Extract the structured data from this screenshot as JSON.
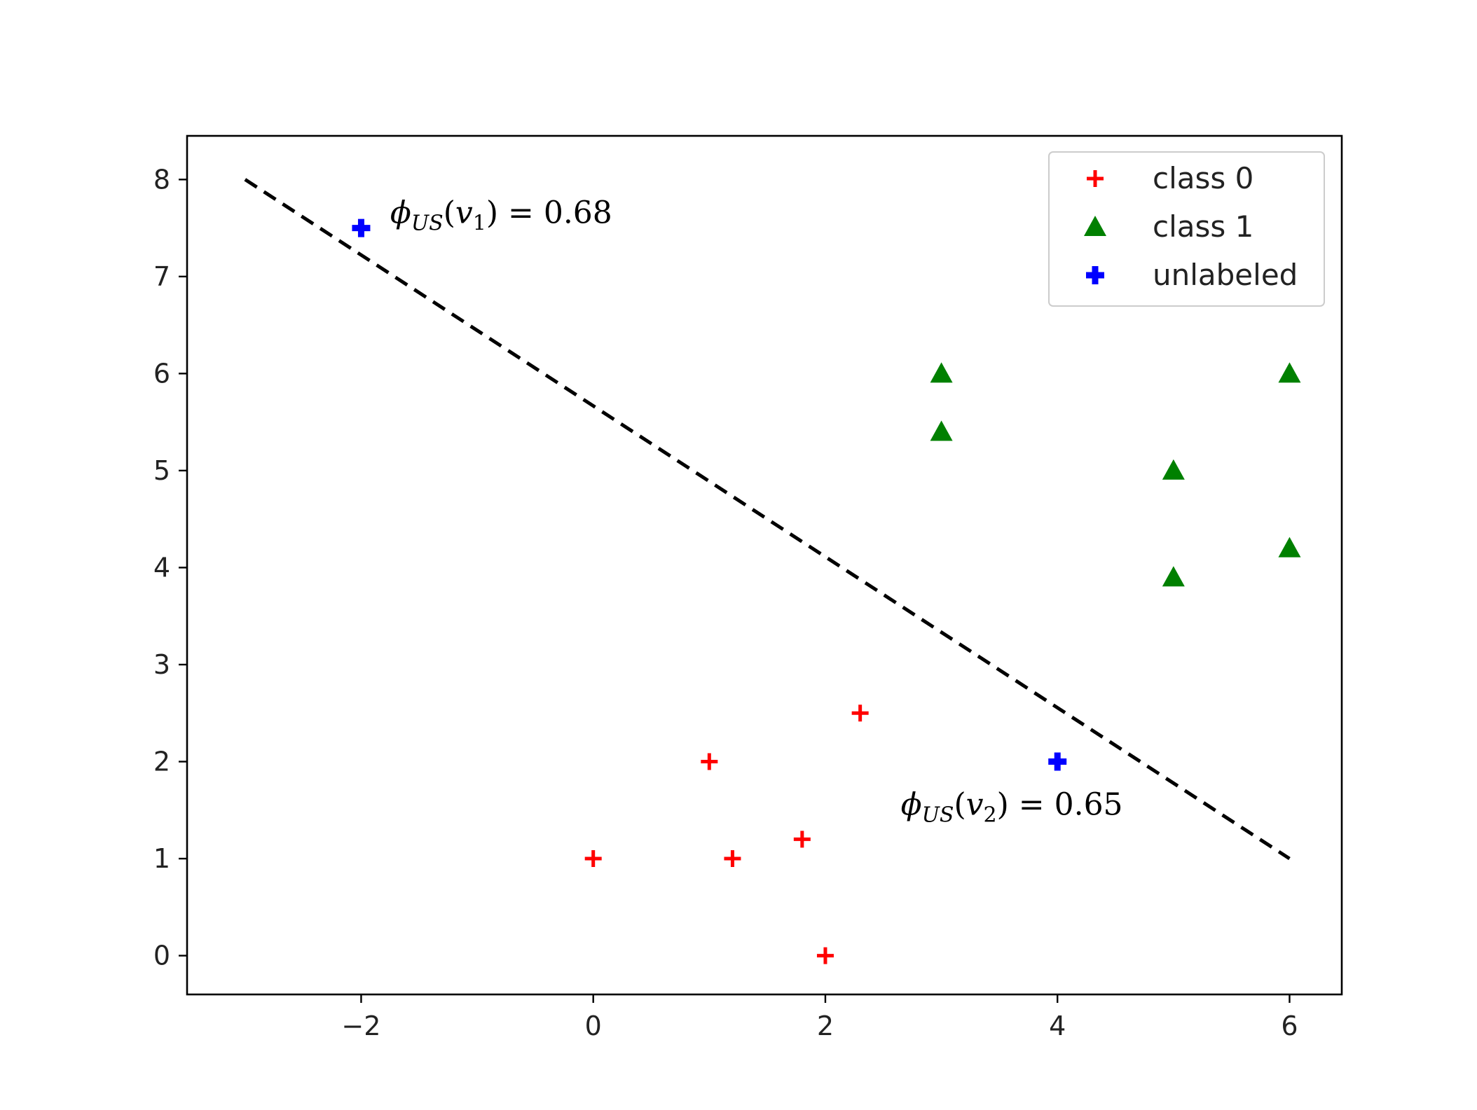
{
  "chart_data": {
    "type": "scatter",
    "xlim": [
      -3.5,
      6.45
    ],
    "ylim": [
      -0.4,
      8.45
    ],
    "xticks": [
      -2,
      0,
      2,
      4,
      6
    ],
    "xtick_labels": [
      "−2",
      "0",
      "2",
      "4",
      "6"
    ],
    "yticks": [
      0,
      1,
      2,
      3,
      4,
      5,
      6,
      7,
      8
    ],
    "ytick_labels": [
      "0",
      "1",
      "2",
      "3",
      "4",
      "5",
      "6",
      "7",
      "8"
    ],
    "grid": false,
    "legend_position": "top-right",
    "series": [
      {
        "name": "class 0",
        "marker": "plus",
        "color": "#ff0000",
        "points": [
          [
            0,
            1
          ],
          [
            1,
            2
          ],
          [
            1.2,
            1
          ],
          [
            1.8,
            1.2
          ],
          [
            2,
            0
          ],
          [
            2.3,
            2.5
          ]
        ]
      },
      {
        "name": "class 1",
        "marker": "triangle",
        "color": "#008000",
        "points": [
          [
            3,
            6
          ],
          [
            3,
            5.4
          ],
          [
            5,
            5
          ],
          [
            5,
            3.9
          ],
          [
            6,
            6
          ],
          [
            6,
            4.2
          ]
        ]
      },
      {
        "name": "unlabeled",
        "marker": "thick-plus",
        "color": "#0000ff",
        "points": [
          [
            -2,
            7.5
          ],
          [
            4,
            2
          ]
        ]
      }
    ],
    "decision_line": {
      "style": "dashed",
      "color": "#000000",
      "points": [
        [
          -3,
          8
        ],
        [
          6,
          1
        ]
      ]
    },
    "annotations": [
      {
        "label_prefix": "ϕ",
        "label_sub": "US",
        "label_open": "(",
        "label_var": "v",
        "label_var_sub": "1",
        "label_rest": ") = 0.68",
        "x": -1.75,
        "y": 7.55
      },
      {
        "label_prefix": "ϕ",
        "label_sub": "US",
        "label_open": "(",
        "label_var": "v",
        "label_var_sub": "2",
        "label_rest": ") = 0.65",
        "x": 2.65,
        "y": 1.45
      }
    ]
  }
}
